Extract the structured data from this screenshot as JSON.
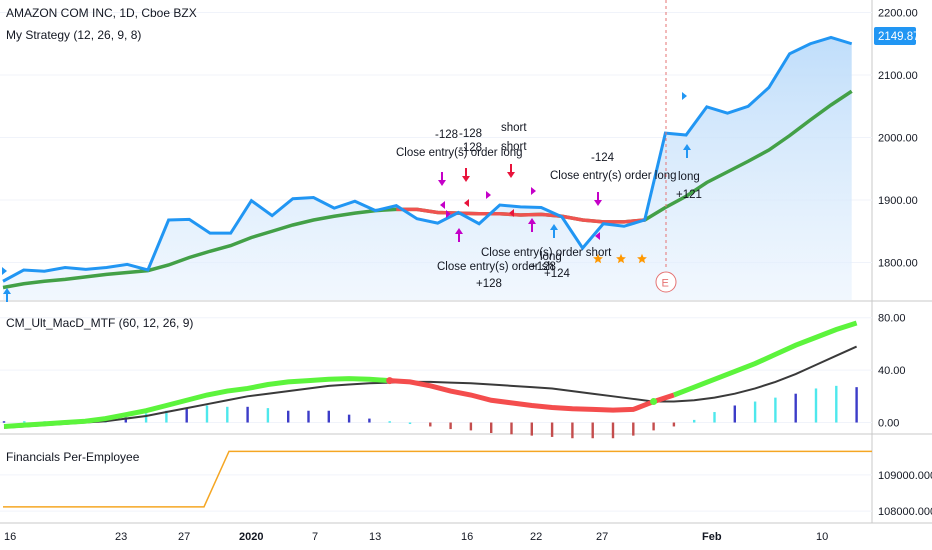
{
  "symbol_title": "AMAZON COM INC, 1D, Cboe BZX",
  "strategy_label": "My Strategy  (12, 26, 9, 8)",
  "indicator_label": "CM_Ult_MacD_MTF (60, 12, 26, 9)",
  "financials_label": "Financials Per-Employee",
  "last_price_label": "2149.87",
  "earnings_marker": "E",
  "colors": {
    "price_line": "#2196f3",
    "price_fill": "#d5e8fb",
    "ma_green": "#43a047",
    "ma_red": "#ef5350",
    "macd_up": "#5cf43c",
    "macd_down": "#f44d4d",
    "signal": "#3a3a3a",
    "hist_cyan": "#4ee8ec",
    "hist_blue": "#3c3cc8",
    "hist_red": "#c44d4d",
    "financials": "#f5a623",
    "marker_magenta": "#c400c8",
    "marker_red": "#e8143c",
    "star": "#ff9800"
  },
  "chart_data": [
    {
      "type": "line",
      "title": "AMAZON COM INC, 1D, Cboe BZX",
      "ylim": [
        1740,
        2220
      ],
      "yticks": [
        "2200.00",
        "2100.00",
        "2000.00",
        "1900.00",
        "1800.00"
      ],
      "ytick_values": [
        2200,
        2100,
        2000,
        1900,
        1800
      ],
      "series": [
        {
          "name": "Close",
          "values": [
            1770,
            1788,
            1786,
            1792,
            1789,
            1792,
            1797,
            1788,
            1868,
            1869,
            1847,
            1847,
            1899,
            1875,
            1902,
            1904,
            1887,
            1898,
            1883,
            1891,
            1870,
            1863,
            1880,
            1862,
            1892,
            1889,
            1888,
            1873,
            1823,
            1862,
            1858,
            1868,
            2007,
            2004,
            2049,
            2039,
            2050,
            2080,
            2134,
            2150,
            2160,
            2150
          ]
        },
        {
          "name": "Fast MA",
          "values": [
            1760,
            1766,
            1770,
            1773,
            1777,
            1781,
            1784,
            1787,
            1796,
            1808,
            1818,
            1827,
            1840,
            1850,
            1860,
            1868,
            1874,
            1879,
            1883,
            1885,
            1885,
            1880,
            1879,
            1878,
            1878,
            1876,
            1877,
            1874,
            1868,
            1865,
            1865,
            1868,
            1888,
            1906,
            1928,
            1945,
            1962,
            1980,
            2003,
            2028,
            2052,
            2074
          ]
        }
      ],
      "annotations": [
        "-128",
        "-128",
        "short",
        "-128",
        "short",
        "Close entry(s) order long",
        "-124",
        "Close entry(s) order long",
        "long",
        "+121",
        "Close entry(s) order short",
        "long",
        "+124",
        "Close entry(s) order sh",
        "+128",
        "+128"
      ]
    },
    {
      "type": "line",
      "title": "CM_Ult_MacD_MTF (60, 12, 26, 9)",
      "ylim": [
        -8,
        92
      ],
      "yticks": [
        "80.00",
        "40.00",
        "0.00"
      ],
      "ytick_values": [
        80,
        40,
        0
      ],
      "series": [
        {
          "name": "MACD",
          "values": [
            -3,
            -2,
            -1,
            0,
            1,
            3,
            6,
            9,
            13,
            17,
            21,
            24,
            26,
            29,
            31,
            32,
            33,
            33.5,
            33,
            32,
            31,
            28,
            24,
            21,
            17,
            15,
            13,
            11.5,
            10.5,
            10,
            9.5,
            10,
            16,
            21,
            27,
            33,
            39,
            45,
            52,
            59,
            65,
            71,
            76
          ]
        },
        {
          "name": "Signal",
          "values": [
            -4,
            -3,
            -2,
            -1,
            0,
            1,
            3,
            5,
            8,
            11,
            14,
            17,
            20,
            22,
            24,
            26,
            28,
            29,
            30,
            30.5,
            31,
            31,
            30.5,
            30,
            29,
            28,
            27,
            26,
            24,
            22,
            20,
            18,
            16,
            16,
            17,
            19,
            22,
            26,
            31,
            37,
            44,
            51,
            58
          ]
        },
        {
          "name": "Histogram",
          "values": [
            1,
            1,
            1,
            1,
            2,
            3,
            4,
            7,
            9,
            11,
            13,
            12,
            12,
            11,
            9,
            9,
            9,
            6,
            3,
            1,
            0,
            -3,
            -5,
            -6,
            -8,
            -9,
            -10,
            -11,
            -12,
            -12,
            -12,
            -10,
            -6,
            -3,
            2,
            8,
            13,
            16,
            19,
            22,
            26,
            28,
            27
          ]
        }
      ]
    },
    {
      "type": "line",
      "title": "Financials Per-Employee",
      "ylim": [
        107700,
        110100
      ],
      "yticks": [
        "109000.000",
        "108000.000"
      ],
      "ytick_values": [
        109000,
        108000
      ],
      "series": [
        {
          "name": "Per-Employee",
          "values": [
            108118,
            108118,
            109650,
            109650
          ]
        }
      ]
    }
  ],
  "x_axis": {
    "ticks": [
      "16",
      "23",
      "27",
      "2020",
      "7",
      "13",
      "16",
      "22",
      "27",
      "Feb",
      "10"
    ],
    "bold_ticks": [
      "2020",
      "Feb"
    ]
  }
}
